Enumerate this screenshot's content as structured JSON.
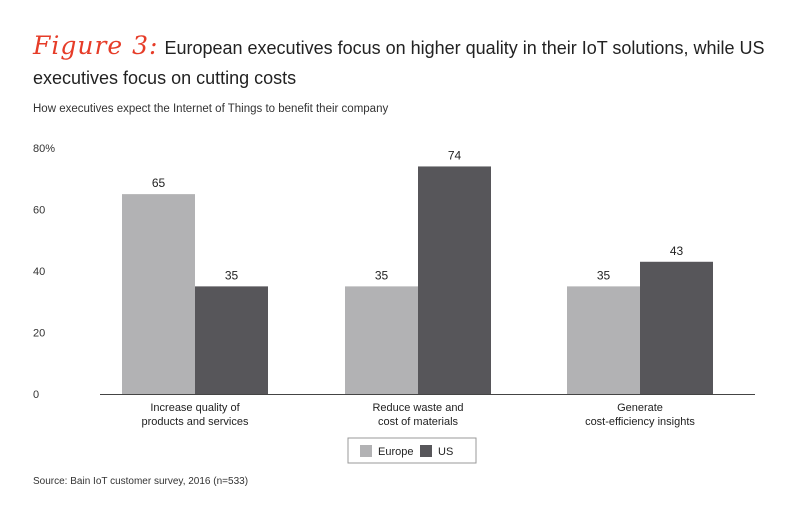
{
  "figure_label": "Figure 3:",
  "title": "European executives focus on higher quality in their IoT solutions, while US executives focus on cutting costs",
  "subtitle": "How executives expect the Internet of Things to benefit their company",
  "source": "Source: Bain IoT customer survey, 2016 (n=533)",
  "colors": {
    "accent": "#e63c28",
    "europe": "#b2b2b4",
    "us": "#57565a"
  },
  "chart_data": {
    "type": "bar",
    "categories": [
      [
        "Increase quality of",
        "products and services"
      ],
      [
        "Reduce waste and",
        "cost of materials"
      ],
      [
        "Generate",
        "cost-efficiency insights"
      ]
    ],
    "series": [
      {
        "name": "Europe",
        "values": [
          65,
          35,
          35
        ]
      },
      {
        "name": "US",
        "values": [
          35,
          74,
          43
        ]
      }
    ],
    "ylim": [
      0,
      80
    ],
    "yticks": [
      "0",
      "20",
      "40",
      "60",
      "80%"
    ],
    "legend": "bottom-center",
    "grid": false
  }
}
